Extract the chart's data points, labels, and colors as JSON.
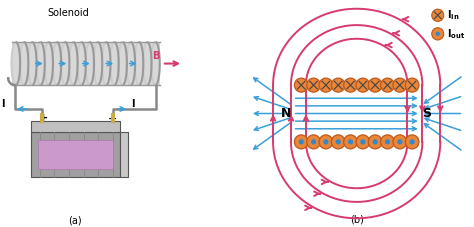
{
  "fig_width": 4.74,
  "fig_height": 2.27,
  "dpi": 100,
  "bg_color": "#ffffff",
  "arrow_blue": "#3a9fd8",
  "arrow_pink": "#d63a6e",
  "orange_coil": "#e8863a",
  "orange_edge": "#c05818",
  "gray_coil": "#bbbbbb",
  "gray_dark": "#888888",
  "label_a": "(a)",
  "label_b": "(b)",
  "solenoid_label": "Solenoid",
  "N_label": "N",
  "S_label": "S"
}
